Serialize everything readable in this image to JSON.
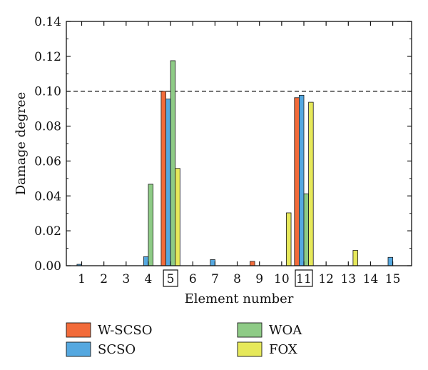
{
  "chart_data": {
    "type": "bar",
    "title": "",
    "xlabel": "Element number",
    "ylabel": "Damage degree",
    "categories": [
      "1",
      "2",
      "3",
      "4",
      "5",
      "6",
      "7",
      "8",
      "9",
      "10",
      "11",
      "12",
      "13",
      "14",
      "15"
    ],
    "boxed_categories": [
      "5",
      "11"
    ],
    "ylim": [
      0,
      0.14
    ],
    "yticks": [
      "0.00",
      "0.02",
      "0.04",
      "0.06",
      "0.08",
      "0.10",
      "0.12",
      "0.14"
    ],
    "reference_line": {
      "y": 0.1,
      "style": "dashed"
    },
    "grid": false,
    "legend_position": "bottom",
    "series": [
      {
        "name": "W-SCSO",
        "color": "#f26b3a",
        "values": [
          0.0,
          0,
          0,
          0,
          0.1,
          0,
          0,
          0,
          0.0025,
          0,
          0.0963,
          0,
          0,
          0,
          0
        ]
      },
      {
        "name": "SCSO",
        "color": "#55a8e0",
        "values": [
          0.0008,
          0,
          0,
          0.0052,
          0.0955,
          0,
          0.0035,
          0,
          0,
          0,
          0.0977,
          0,
          0,
          0,
          0.0048
        ]
      },
      {
        "name": "WOA",
        "color": "#8ecb86",
        "values": [
          0,
          0,
          0,
          0.0467,
          0.1175,
          0,
          0,
          0,
          0,
          0,
          0.0412,
          0,
          0,
          0,
          0
        ]
      },
      {
        "name": "FOX",
        "color": "#e6e85a",
        "values": [
          0,
          0,
          0,
          0,
          0.0558,
          0,
          0,
          0,
          0,
          0.0303,
          0.0937,
          0,
          0.0088,
          0,
          0
        ]
      }
    ]
  }
}
